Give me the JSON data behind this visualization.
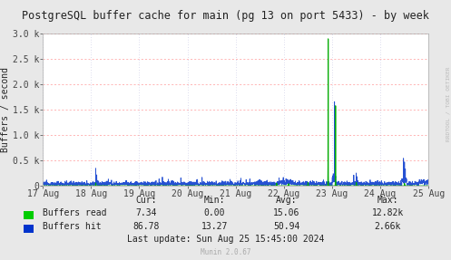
{
  "title": "PostgreSQL buffer cache for main (pg 13 on port 5433) - by week",
  "ylabel": "Buffers / second",
  "bg_color": "#e8e8e8",
  "plot_bg_color": "#ffffff",
  "x_ticks": [
    0,
    1,
    2,
    3,
    4,
    5,
    6,
    7,
    8
  ],
  "x_labels": [
    "17 Aug",
    "18 Aug",
    "19 Aug",
    "20 Aug",
    "21 Aug",
    "22 Aug",
    "23 Aug",
    "24 Aug",
    "25 Aug"
  ],
  "ylim": [
    0,
    3000
  ],
  "y_ticks": [
    0,
    500,
    1000,
    1500,
    2000,
    2500,
    3000
  ],
  "y_labels": [
    "0",
    "0.5 k",
    "1.0 k",
    "1.5 k",
    "2.0 k",
    "2.5 k",
    "3.0 k"
  ],
  "stats": {
    "cur_read": "7.34",
    "min_read": "0.00",
    "avg_read": "15.06",
    "max_read": "12.82k",
    "cur_hit": "86.78",
    "min_hit": "13.27",
    "avg_hit": "50.94",
    "max_hit": "2.66k"
  },
  "last_update": "Last update: Sun Aug 25 15:45:00 2024",
  "munin_version": "Munin 2.0.67",
  "rrdtool_label": "RRDTOOL / TOBI OETIKER",
  "title_fontsize": 8.5,
  "axis_fontsize": 7.0,
  "stats_fontsize": 7.0,
  "legend_color_read": "#00cc00",
  "legend_color_hit": "#0033cc",
  "hit_line_color": "#0033cc",
  "read_line_color": "#00aa00"
}
